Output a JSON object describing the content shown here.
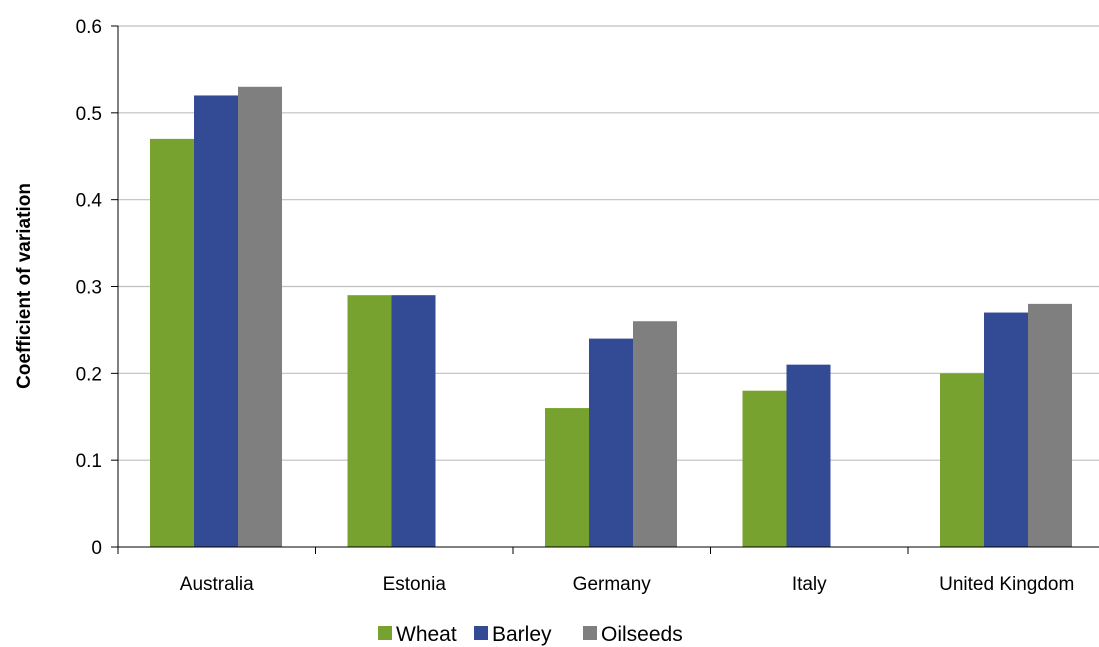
{
  "chart_data": {
    "type": "bar",
    "title": "",
    "xlabel": "",
    "ylabel": "Coefficient of variation",
    "categories": [
      "Australia",
      "Estonia",
      "Germany",
      "Italy",
      "United Kingdom"
    ],
    "series": [
      {
        "name": "Wheat",
        "color": "#77a22f",
        "values": [
          0.47,
          0.29,
          0.16,
          0.18,
          0.2
        ]
      },
      {
        "name": "Barley",
        "color": "#334a94",
        "values": [
          0.52,
          0.29,
          0.24,
          0.21,
          0.27
        ]
      },
      {
        "name": "Oilseeds",
        "color": "#7f7f7f",
        "values": [
          0.53,
          null,
          0.26,
          null,
          0.28
        ]
      }
    ],
    "ylim": [
      0,
      0.6
    ],
    "yticks": [
      0,
      0.1,
      0.2,
      0.3,
      0.4,
      0.5,
      0.6
    ],
    "ytick_labels": [
      "0",
      "0.1",
      "0.2",
      "0.3",
      "0.4",
      "0.5",
      "0.6"
    ],
    "grid": true,
    "legend_position": "bottom-center"
  }
}
